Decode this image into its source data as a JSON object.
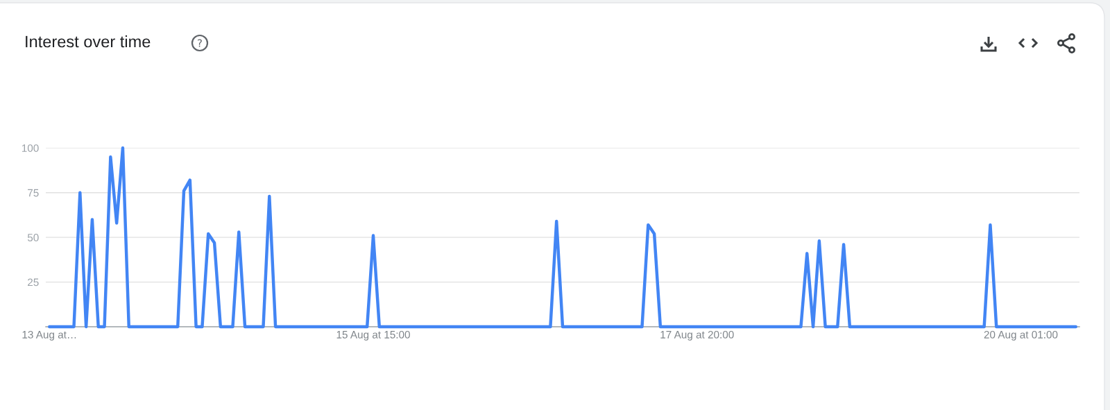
{
  "chart_data": {
    "type": "line",
    "title": "Interest over time",
    "categories": [
      "13 Aug at…",
      null,
      null,
      null,
      null,
      null,
      null,
      null,
      null,
      null,
      null,
      null,
      null,
      null,
      null,
      null,
      null,
      null,
      null,
      null,
      null,
      null,
      null,
      null,
      null,
      null,
      null,
      null,
      null,
      null,
      null,
      null,
      null,
      null,
      null,
      null,
      null,
      null,
      null,
      null,
      null,
      null,
      null,
      null,
      null,
      null,
      null,
      null,
      null,
      null,
      null,
      null,
      null,
      "15 Aug at 15:00",
      null,
      null,
      null,
      null,
      null,
      null,
      null,
      null,
      null,
      null,
      null,
      null,
      null,
      null,
      null,
      null,
      null,
      null,
      null,
      null,
      null,
      null,
      null,
      null,
      null,
      null,
      null,
      null,
      null,
      null,
      null,
      null,
      null,
      null,
      null,
      null,
      null,
      null,
      null,
      null,
      null,
      null,
      null,
      null,
      null,
      null,
      null,
      null,
      null,
      null,
      null,
      null,
      "17 Aug at 20:00",
      null,
      null,
      null,
      null,
      null,
      null,
      null,
      null,
      null,
      null,
      null,
      null,
      null,
      null,
      null,
      null,
      null,
      null,
      null,
      null,
      null,
      null,
      null,
      null,
      null,
      null,
      null,
      null,
      null,
      null,
      null,
      null,
      null,
      null,
      null,
      null,
      null,
      null,
      null,
      null,
      null,
      null,
      null,
      null,
      null,
      null,
      null,
      null,
      null,
      null,
      null,
      null,
      "20 Aug at 01:00",
      null,
      null,
      null,
      null,
      null,
      null,
      null,
      null,
      null
    ],
    "series": [
      {
        "color": "#4285f4",
        "values": [
          0,
          0,
          0,
          0,
          0,
          75,
          0,
          60,
          0,
          0,
          95,
          58,
          100,
          0,
          0,
          0,
          0,
          0,
          0,
          0,
          0,
          0,
          76,
          82,
          0,
          0,
          52,
          47,
          0,
          0,
          0,
          53,
          0,
          0,
          0,
          0,
          73,
          0,
          0,
          0,
          0,
          0,
          0,
          0,
          0,
          0,
          0,
          0,
          0,
          0,
          0,
          0,
          0,
          51,
          0,
          0,
          0,
          0,
          0,
          0,
          0,
          0,
          0,
          0,
          0,
          0,
          0,
          0,
          0,
          0,
          0,
          0,
          0,
          0,
          0,
          0,
          0,
          0,
          0,
          0,
          0,
          0,
          0,
          59,
          0,
          0,
          0,
          0,
          0,
          0,
          0,
          0,
          0,
          0,
          0,
          0,
          0,
          0,
          57,
          52,
          0,
          0,
          0,
          0,
          0,
          0,
          0,
          0,
          0,
          0,
          0,
          0,
          0,
          0,
          0,
          0,
          0,
          0,
          0,
          0,
          0,
          0,
          0,
          0,
          41,
          0,
          48,
          0,
          0,
          0,
          46,
          0,
          0,
          0,
          0,
          0,
          0,
          0,
          0,
          0,
          0,
          0,
          0,
          0,
          0,
          0,
          0,
          0,
          0,
          0,
          0,
          0,
          0,
          0,
          57,
          0,
          0,
          0,
          0,
          0,
          0,
          0,
          0,
          0,
          0,
          0,
          0,
          0,
          0
        ]
      }
    ],
    "ylim": [
      0,
      100
    ],
    "yticks": [
      25,
      50,
      75,
      100
    ],
    "grid": "y"
  }
}
